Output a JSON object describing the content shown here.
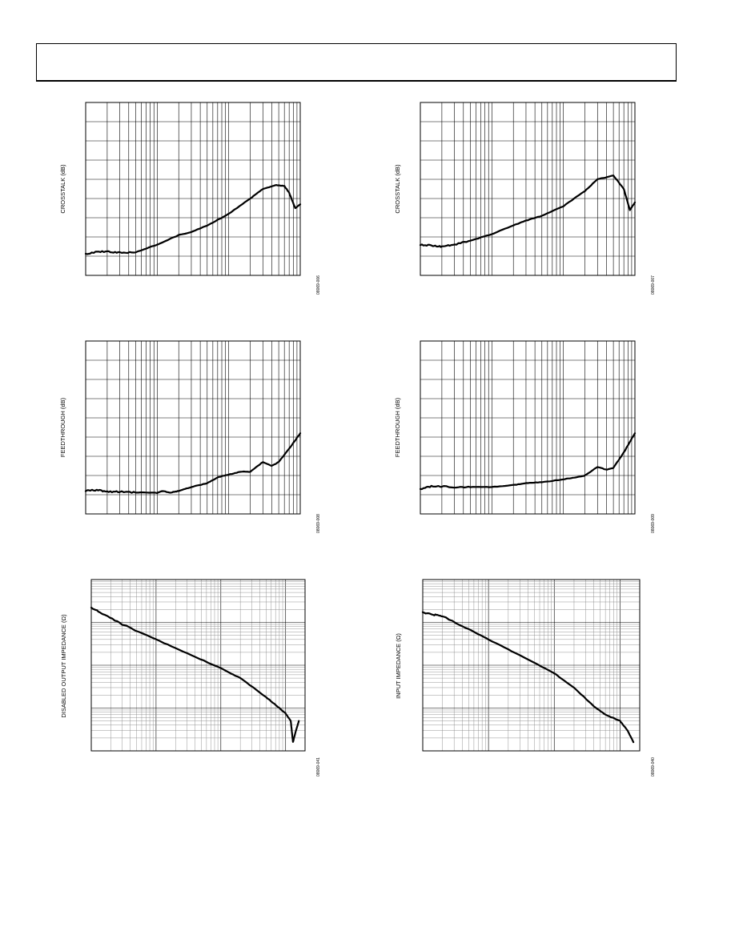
{
  "chart_data": [
    {
      "type": "line",
      "ylabel": "CROSSTALK (dB)",
      "fig_id": "08069-006",
      "xscale": "log",
      "grid": true,
      "series": [
        {
          "points": [
            [
              0.1,
              -89
            ],
            [
              0.13,
              -88
            ],
            [
              0.2,
              -87.5
            ],
            [
              0.3,
              -88.2
            ],
            [
              0.5,
              -88
            ],
            [
              1,
              -84
            ],
            [
              2,
              -79
            ],
            [
              3,
              -77.5
            ],
            [
              5,
              -74
            ],
            [
              10,
              -68
            ],
            [
              20,
              -60
            ],
            [
              30,
              -55
            ],
            [
              45,
              -53
            ],
            [
              60,
              -53.5
            ],
            [
              70,
              -57
            ],
            [
              85,
              -65
            ],
            [
              100,
              -63
            ]
          ]
        }
      ]
    },
    {
      "type": "line",
      "ylabel": "CROSSTALK (dB)",
      "fig_id": "08069-007",
      "xscale": "log",
      "grid": true,
      "series": [
        {
          "points": [
            [
              0.1,
              -84
            ],
            [
              0.15,
              -84.5
            ],
            [
              0.2,
              -85
            ],
            [
              0.3,
              -84
            ],
            [
              0.5,
              -82
            ],
            [
              1,
              -78.5
            ],
            [
              2,
              -74
            ],
            [
              3,
              -71.5
            ],
            [
              5,
              -69
            ],
            [
              10,
              -64
            ],
            [
              20,
              -56
            ],
            [
              30,
              -50
            ],
            [
              50,
              -48
            ],
            [
              70,
              -55
            ],
            [
              85,
              -66
            ],
            [
              100,
              -62
            ]
          ]
        }
      ]
    },
    {
      "type": "line",
      "ylabel": "FEEDTHROUGH (dB)",
      "fig_id": "08069-008",
      "xscale": "log",
      "grid": true,
      "series": [
        {
          "points": [
            [
              0.1,
              -88
            ],
            [
              0.15,
              -87.5
            ],
            [
              0.2,
              -88.5
            ],
            [
              0.3,
              -88.5
            ],
            [
              0.5,
              -88.8
            ],
            [
              1,
              -89
            ],
            [
              1.2,
              -88
            ],
            [
              1.5,
              -89
            ],
            [
              2,
              -88
            ],
            [
              3,
              -86
            ],
            [
              5,
              -84
            ],
            [
              7,
              -81
            ],
            [
              10,
              -79.5
            ],
            [
              15,
              -78
            ],
            [
              20,
              -78
            ],
            [
              30,
              -73
            ],
            [
              40,
              -75
            ],
            [
              50,
              -73
            ],
            [
              70,
              -66
            ],
            [
              100,
              -58
            ]
          ]
        }
      ]
    },
    {
      "type": "line",
      "ylabel": "FEEDTHROUGH (dB)",
      "fig_id": "08069-009",
      "xscale": "log",
      "grid": true,
      "series": [
        {
          "points": [
            [
              0.1,
              -87
            ],
            [
              0.15,
              -85.5
            ],
            [
              0.3,
              -86
            ],
            [
              0.5,
              -86
            ],
            [
              1,
              -86
            ],
            [
              2,
              -85
            ],
            [
              3,
              -84
            ],
            [
              5,
              -83.5
            ],
            [
              10,
              -82
            ],
            [
              15,
              -81
            ],
            [
              20,
              -80
            ],
            [
              30,
              -75.5
            ],
            [
              40,
              -77
            ],
            [
              50,
              -76
            ],
            [
              70,
              -68
            ],
            [
              100,
              -58
            ]
          ]
        }
      ]
    },
    {
      "type": "line",
      "ylabel": "DISABLED OUTPUT IMPEDANCE (Ω)",
      "fig_id": "08069-041",
      "xscale": "log",
      "yscale": "log",
      "grid": true,
      "series": [
        {
          "points": [
            [
              0.1,
              220000
            ],
            [
              0.15,
              160000
            ],
            [
              0.3,
              90000
            ],
            [
              1,
              40000
            ],
            [
              3,
              19000
            ],
            [
              10,
              8500
            ],
            [
              20,
              5000
            ],
            [
              50,
              1800
            ],
            [
              80,
              1000
            ],
            [
              100,
              750
            ],
            [
              120,
              500
            ],
            [
              130,
              160
            ],
            [
              140,
              250
            ],
            [
              160,
              500
            ]
          ]
        }
      ]
    },
    {
      "type": "line",
      "ylabel": "INPUT IMPEDANCE (Ω)",
      "fig_id": "08069-040",
      "xscale": "log",
      "yscale": "log",
      "grid": true,
      "series": [
        {
          "points": [
            [
              0.1,
              1700000
            ],
            [
              0.15,
              1500000
            ],
            [
              0.2,
              1400000
            ],
            [
              0.5,
              700000
            ],
            [
              1,
              400000
            ],
            [
              3,
              170000
            ],
            [
              10,
              65000
            ],
            [
              20,
              30000
            ],
            [
              40,
              11000
            ],
            [
              60,
              7000
            ],
            [
              100,
              5000
            ],
            [
              130,
              3000
            ],
            [
              160,
              1600
            ]
          ]
        }
      ]
    }
  ]
}
